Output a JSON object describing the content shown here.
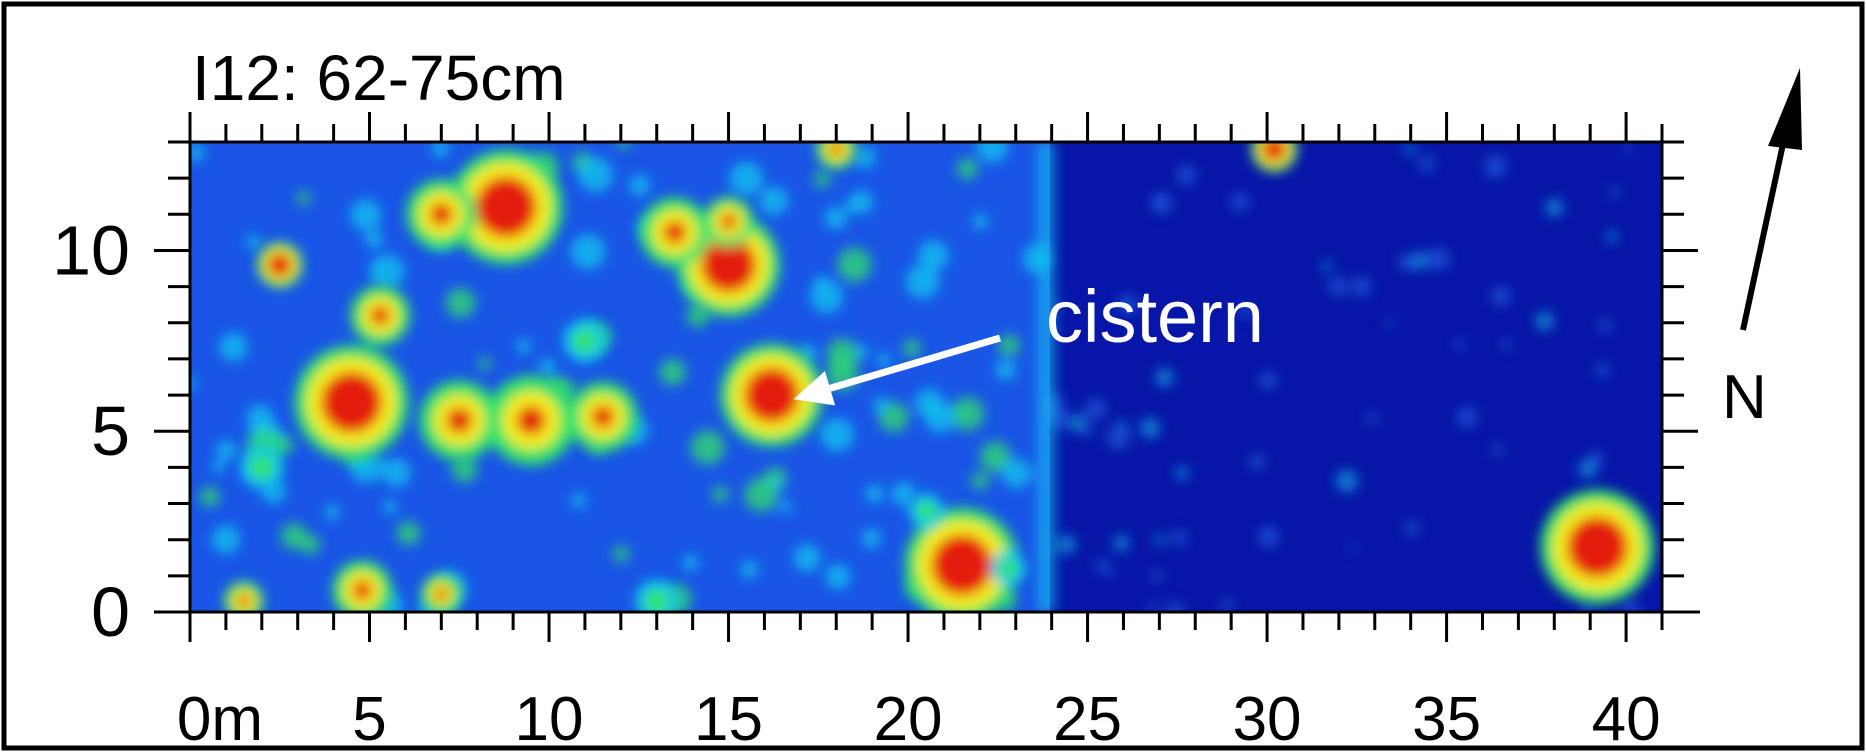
{
  "title": "I12: 62-75cm",
  "x_axis": {
    "min": 0,
    "max": 41,
    "major_ticks": [
      0,
      5,
      10,
      15,
      20,
      25,
      30,
      35,
      40
    ],
    "tick_labels": [
      "0m",
      "5",
      "10",
      "15",
      "20",
      "25",
      "30",
      "35",
      "40"
    ],
    "minor_step": 1
  },
  "y_axis": {
    "min": 0,
    "max": 13,
    "major_ticks": [
      0,
      5,
      10
    ],
    "tick_labels": [
      "0",
      "5",
      "10"
    ],
    "minor_step": 1
  },
  "annotation": {
    "text": "cistern",
    "target": {
      "x": 16.2,
      "y": 6.0
    }
  },
  "north_arrow": {
    "label": "N"
  },
  "colors": {
    "frame": "#000000",
    "background_low": "#0a1fa8",
    "mid": "#11c8f0",
    "mid_high": "#32e26a",
    "high": "#f4ee1a",
    "peak": "#e41a0e",
    "annotation": "#ffffff"
  },
  "anomalies": [
    {
      "x": 4.5,
      "y": 5.8,
      "r": 1.0,
      "level": "peak"
    },
    {
      "x": 7.5,
      "y": 5.3,
      "r": 0.8,
      "level": "high"
    },
    {
      "x": 9.5,
      "y": 5.3,
      "r": 0.9,
      "level": "high"
    },
    {
      "x": 11.5,
      "y": 5.4,
      "r": 0.7,
      "level": "high"
    },
    {
      "x": 16.2,
      "y": 6.0,
      "r": 0.9,
      "level": "peak"
    },
    {
      "x": 8.8,
      "y": 11.2,
      "r": 1.0,
      "level": "peak"
    },
    {
      "x": 7.0,
      "y": 11.0,
      "r": 0.7,
      "level": "high"
    },
    {
      "x": 15.0,
      "y": 9.6,
      "r": 0.9,
      "level": "peak"
    },
    {
      "x": 13.5,
      "y": 10.5,
      "r": 0.7,
      "level": "high"
    },
    {
      "x": 15.0,
      "y": 10.8,
      "r": 0.5,
      "level": "high"
    },
    {
      "x": 5.3,
      "y": 8.2,
      "r": 0.6,
      "level": "high"
    },
    {
      "x": 2.5,
      "y": 9.6,
      "r": 0.4,
      "level": "peak"
    },
    {
      "x": 21.5,
      "y": 1.3,
      "r": 1.0,
      "level": "peak"
    },
    {
      "x": 39.2,
      "y": 1.8,
      "r": 1.0,
      "level": "peak"
    },
    {
      "x": 30.2,
      "y": 12.8,
      "r": 0.4,
      "level": "peak"
    },
    {
      "x": 4.8,
      "y": 0.6,
      "r": 0.6,
      "level": "high"
    },
    {
      "x": 1.5,
      "y": 0.3,
      "r": 0.4,
      "level": "high"
    },
    {
      "x": 7.0,
      "y": 0.5,
      "r": 0.4,
      "level": "high"
    },
    {
      "x": 13.0,
      "y": 0.3,
      "r": 0.5,
      "level": "mid_high"
    },
    {
      "x": 18.0,
      "y": 12.8,
      "r": 0.4,
      "level": "high"
    },
    {
      "x": 11.0,
      "y": 7.5,
      "r": 0.5,
      "level": "mid_high"
    },
    {
      "x": 2.0,
      "y": 4.0,
      "r": 0.5,
      "level": "mid_high"
    },
    {
      "x": 22.8,
      "y": 1.2,
      "r": 0.4,
      "level": "mid_high"
    },
    {
      "x": 20.5,
      "y": 2.8,
      "r": 0.4,
      "level": "mid_high"
    }
  ]
}
